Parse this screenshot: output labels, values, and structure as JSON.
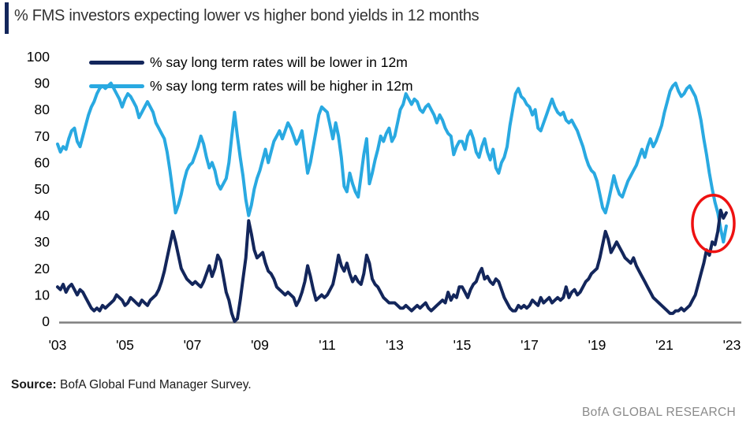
{
  "header": {
    "title": "% FMS investors expecting lower vs higher bond yields in 12 months"
  },
  "legend": {
    "items": [
      {
        "label": "% say long term rates will be lower in 12m"
      },
      {
        "label": "% say long term rates will be higher in 12m"
      }
    ]
  },
  "footer": {
    "source_label": "Source:",
    "source_text": " BofA Global Fund Manager Survey.",
    "branding": "BofA GLOBAL RESEARCH"
  },
  "colors": {
    "lower_navy": "#13265B",
    "higher_blue": "#29A9E1",
    "axis_gray": "#7F7F7F",
    "annotation_red": "#EE1111",
    "title_bar_navy": "#13265B",
    "branding_gray": "#8A8A8A"
  },
  "chart_data": {
    "type": "line",
    "title": "% FMS investors expecting lower vs higher bond yields in 12 months",
    "frequency": "monthly",
    "start_year": 2003,
    "grid": false,
    "legend_position": "top-left",
    "ylim": [
      0,
      100
    ],
    "y_ticks": [
      0,
      10,
      20,
      30,
      40,
      50,
      60,
      70,
      80,
      90,
      100
    ],
    "x_ticks": [
      {
        "label": "'03",
        "year": 2003
      },
      {
        "label": "'05",
        "year": 2005
      },
      {
        "label": "'07",
        "year": 2007
      },
      {
        "label": "'09",
        "year": 2009
      },
      {
        "label": "'11",
        "year": 2011
      },
      {
        "label": "'13",
        "year": 2013
      },
      {
        "label": "'15",
        "year": 2015
      },
      {
        "label": "'17",
        "year": 2017
      },
      {
        "label": "'19",
        "year": 2019
      },
      {
        "label": "'21",
        "year": 2021
      },
      {
        "label": "'23",
        "year": 2023
      }
    ],
    "series": [
      {
        "name": "% say long term rates will be lower in 12m",
        "color": "#13265B",
        "values": [
          13,
          12,
          14,
          11,
          13,
          14,
          12,
          10,
          12,
          11,
          9,
          7,
          5,
          4,
          5,
          4,
          6,
          5,
          6,
          7,
          8,
          10,
          9,
          8,
          6,
          7,
          9,
          8,
          7,
          6,
          8,
          7,
          6,
          8,
          9,
          10,
          12,
          15,
          19,
          24,
          29,
          34,
          30,
          25,
          20,
          18,
          16,
          15,
          14,
          15,
          14,
          13,
          15,
          18,
          21,
          17,
          20,
          25,
          23,
          17,
          11,
          8,
          3,
          0,
          1,
          8,
          16,
          24,
          38,
          33,
          27,
          24,
          25,
          26,
          22,
          19,
          18,
          16,
          13,
          12,
          11,
          10,
          11,
          10,
          9,
          6,
          8,
          11,
          15,
          21,
          17,
          12,
          8,
          9,
          10,
          9,
          10,
          12,
          14,
          19,
          25,
          21,
          19,
          22,
          18,
          15,
          17,
          15,
          14,
          18,
          25,
          22,
          16,
          14,
          13,
          11,
          9,
          8,
          7,
          7,
          7,
          6,
          5,
          5,
          6,
          5,
          4,
          5,
          6,
          5,
          6,
          7,
          5,
          4,
          5,
          6,
          7,
          8,
          7,
          11,
          8,
          10,
          9,
          13,
          13,
          11,
          9,
          12,
          14,
          15,
          18,
          20,
          16,
          17,
          15,
          14,
          16,
          15,
          12,
          9,
          7,
          5,
          4,
          4,
          6,
          5,
          6,
          5,
          6,
          8,
          7,
          6,
          9,
          7,
          8,
          9,
          7,
          8,
          9,
          8,
          9,
          13,
          9,
          11,
          12,
          10,
          11,
          13,
          15,
          16,
          18,
          19,
          20,
          24,
          29,
          34,
          31,
          26,
          28,
          30,
          28,
          26,
          24,
          23,
          22,
          24,
          21,
          19,
          17,
          15,
          13,
          11,
          9,
          8,
          7,
          6,
          5,
          4,
          3,
          3,
          4,
          4,
          5,
          4,
          5,
          6,
          8,
          10,
          14,
          18,
          22,
          27,
          25,
          30,
          29,
          34,
          42,
          39,
          41
        ]
      },
      {
        "name": "% say long term rates will be higher in 12m",
        "color": "#29A9E1",
        "values": [
          67,
          64,
          66,
          65,
          69,
          72,
          73,
          68,
          66,
          70,
          74,
          78,
          81,
          83,
          86,
          88,
          89,
          88,
          89,
          90,
          88,
          86,
          84,
          81,
          84,
          86,
          85,
          83,
          81,
          77,
          79,
          81,
          83,
          81,
          79,
          75,
          73,
          71,
          69,
          64,
          57,
          49,
          41,
          44,
          48,
          53,
          57,
          59,
          60,
          63,
          66,
          70,
          67,
          62,
          58,
          60,
          57,
          52,
          50,
          52,
          54,
          60,
          70,
          79,
          70,
          62,
          55,
          46,
          40,
          44,
          50,
          54,
          57,
          61,
          65,
          60,
          64,
          68,
          70,
          72,
          69,
          72,
          75,
          73,
          70,
          67,
          69,
          72,
          64,
          56,
          60,
          66,
          72,
          78,
          81,
          80,
          79,
          74,
          69,
          75,
          70,
          62,
          51,
          49,
          56,
          52,
          49,
          47,
          55,
          63,
          69,
          52,
          56,
          61,
          65,
          70,
          68,
          71,
          73,
          68,
          70,
          75,
          80,
          82,
          86,
          84,
          82,
          84,
          83,
          80,
          79,
          81,
          82,
          80,
          78,
          75,
          78,
          76,
          73,
          71,
          70,
          63,
          66,
          68,
          68,
          65,
          70,
          72,
          69,
          64,
          62,
          66,
          69,
          64,
          61,
          65,
          58,
          56,
          60,
          62,
          66,
          74,
          80,
          86,
          88,
          85,
          84,
          82,
          81,
          78,
          80,
          73,
          72,
          75,
          78,
          81,
          84,
          81,
          79,
          78,
          79,
          76,
          75,
          76,
          74,
          72,
          69,
          66,
          62,
          59,
          57,
          56,
          53,
          48,
          43,
          41,
          45,
          50,
          55,
          51,
          48,
          47,
          50,
          53,
          55,
          57,
          59,
          62,
          65,
          62,
          66,
          69,
          66,
          68,
          71,
          74,
          79,
          83,
          87,
          89,
          90,
          87,
          85,
          86,
          88,
          89,
          87,
          85,
          81,
          76,
          69,
          63,
          56,
          50,
          45,
          41,
          35,
          30,
          36
        ]
      }
    ],
    "annotation": {
      "shape": "ellipse",
      "note": "highlight of late-2022 crossover of the two lines",
      "center_year": 2022.45,
      "center_value": 37,
      "radius_years": 0.62,
      "radius_value": 10.7,
      "color": "#EE1111"
    }
  }
}
